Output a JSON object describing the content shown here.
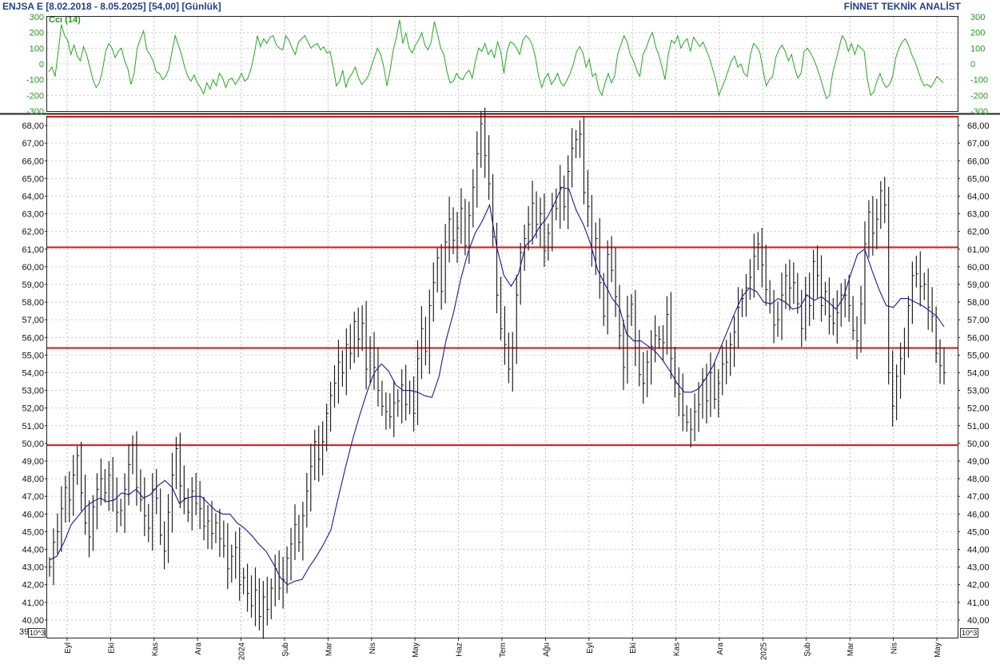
{
  "header": {
    "left": "ENJSA E  [8.02.2018 - 8.05.2025]  [54,00]  [Günlük]",
    "right": "FİNNET TEKNİK ANALİST"
  },
  "colors": {
    "price_bars": "#222222",
    "moving_average": "#1a1a99",
    "cci_line": "#21a821",
    "horizontal_lines": "#e01010",
    "header_text": "#1f3f8f"
  },
  "chart_data": [
    {
      "type": "line",
      "title": "Cci (14)",
      "indicator": "CCI",
      "period": 14,
      "ylim": [
        -300,
        300
      ],
      "y_ticks": [
        300,
        200,
        100,
        0,
        -100,
        -200,
        -300
      ],
      "y_tick_labels": [
        "300",
        "200",
        "100",
        "0",
        "-100",
        "-200",
        "-300"
      ],
      "reference_lines": [
        100,
        -100
      ],
      "grid": true,
      "series": [
        {
          "name": "Cci (14)",
          "values": [
            -50,
            -20,
            -80,
            80,
            250,
            180,
            150,
            60,
            120,
            50,
            20,
            110,
            60,
            -20,
            -100,
            -150,
            -120,
            -40,
            80,
            130,
            100,
            40,
            80,
            100,
            20,
            -30,
            -130,
            -60,
            100,
            160,
            210,
            90,
            60,
            20,
            -50,
            -60,
            -100,
            -80,
            -30,
            80,
            180,
            120,
            60,
            -20,
            -80,
            -110,
            -70,
            -120,
            -150,
            -190,
            -120,
            -160,
            -100,
            -140,
            -60,
            -90,
            -150,
            -100,
            -90,
            -130,
            -100,
            -60,
            -110,
            -90,
            -30,
            60,
            180,
            110,
            160,
            130,
            170,
            180,
            120,
            100,
            90,
            180,
            150,
            100,
            60,
            140,
            160,
            180,
            140,
            100,
            120,
            130,
            90,
            110,
            70,
            80,
            -20,
            -140,
            -110,
            -40,
            -150,
            -90,
            -60,
            -20,
            -90,
            -130,
            -110,
            -80,
            -20,
            40,
            100,
            60,
            -20,
            -140,
            -40,
            90,
            170,
            280,
            130,
            200,
            100,
            70,
            120,
            150,
            200,
            120,
            90,
            140,
            270,
            190,
            100,
            60,
            -50,
            -120,
            -110,
            -60,
            -90,
            -100,
            -60,
            -40,
            -90,
            20,
            100,
            80,
            130,
            60,
            90,
            40,
            140,
            80,
            -60,
            80,
            140,
            130,
            100,
            60,
            150,
            180,
            160,
            120,
            40,
            -80,
            -150,
            -90,
            -60,
            -130,
            -100,
            -60,
            -120,
            -140,
            -100,
            -60,
            0,
            80,
            110,
            70,
            -20,
            30,
            -80,
            -60,
            -160,
            -200,
            -120,
            -60,
            -120,
            -80,
            60,
            120,
            180,
            140,
            60,
            20,
            -40,
            -80,
            60,
            100,
            160,
            200,
            110,
            60,
            -20,
            -100,
            60,
            150,
            130,
            180,
            100,
            140,
            160,
            80,
            170,
            140,
            110,
            140,
            90,
            40,
            -30,
            -100,
            -200,
            -150,
            -100,
            -40,
            20,
            50,
            -20,
            0,
            -60,
            -80,
            60,
            130,
            110,
            70,
            -40,
            -140,
            -100,
            -80,
            40,
            90,
            120,
            80,
            20,
            60,
            -30,
            -90,
            -60,
            80,
            100,
            70,
            30,
            -20,
            -80,
            -150,
            -220,
            -200,
            -60,
            20,
            100,
            180,
            150,
            80,
            130,
            60,
            120,
            100,
            80,
            -100,
            -200,
            -180,
            -110,
            -60,
            -120,
            -150,
            -130,
            -80,
            40,
            100,
            140,
            160,
            120,
            60,
            20,
            -40,
            -100,
            -140,
            -130,
            -150,
            -120,
            -80,
            -100,
            -120
          ]
        }
      ]
    },
    {
      "type": "bar",
      "subtype": "ohlc",
      "y_ticks": [
        68,
        67,
        66,
        65,
        64,
        63,
        62,
        61,
        60,
        59,
        58,
        57,
        56,
        55,
        54,
        53,
        52,
        51,
        50,
        49,
        48,
        47,
        46,
        45,
        44,
        43,
        42,
        41,
        40
      ],
      "y_tick_labels": [
        "68,00",
        "67,00",
        "66,00",
        "65,00",
        "64,00",
        "63,00",
        "62,00",
        "61,00",
        "60,00",
        "59,00",
        "58,00",
        "57,00",
        "56,00",
        "55,00",
        "54,00",
        "53,00",
        "52,00",
        "51,00",
        "50,00",
        "49,00",
        "48,00",
        "47,00",
        "46,00",
        "45,00",
        "44,00",
        "43,00",
        "42,00",
        "41,00",
        "40,00"
      ],
      "bottom_tick_label": "39",
      "ylim": [
        39,
        68.5
      ],
      "x_tick_labels": [
        "Eyl",
        "Eki",
        "Kas",
        "Ara",
        "2024",
        "Şub",
        "Mar",
        "Nis",
        "May",
        "Haz",
        "Tem",
        "Ağu",
        "Eyl",
        "Eki",
        "Kas",
        "Ara",
        "2025",
        "Şub",
        "Mar",
        "Nis",
        "May"
      ],
      "scale_badge": "10^3",
      "grid": true,
      "horizontal_lines": [
        68.5,
        61.1,
        55.4,
        49.9
      ],
      "series": [
        {
          "name": "Close",
          "values": [
            43,
            44.4,
            45,
            46.3,
            47.5,
            46.8,
            48.2,
            49.3,
            47.2,
            45.5,
            44.7,
            46.4,
            47.4,
            48,
            47.2,
            48.2,
            46.8,
            46.1,
            46.2,
            47.4,
            48.8,
            49.9,
            47.5,
            46.8,
            45.9,
            45.2,
            47.4,
            46.9,
            44.8,
            43.9,
            46.1,
            48.2,
            49.7,
            47.6,
            46.9,
            46.1,
            47.3,
            46.6,
            46.3,
            45.3,
            45.6,
            44.9,
            45.5,
            44.6,
            44.2,
            42.9,
            43.6,
            44.1,
            42,
            42.4,
            41.5,
            40.8,
            41.7,
            40.2,
            41.3,
            40.6,
            41.8,
            42.9,
            41.8,
            42.3,
            43.5,
            44.3,
            45.4,
            44.4,
            45.9,
            47.3,
            48.7,
            50.1,
            49.1,
            50.1,
            51.7,
            52.7,
            53.4,
            54.6,
            54,
            55.6,
            55.1,
            56.9,
            55.9,
            56.8,
            54.2,
            55.4,
            54.3,
            53,
            52.1,
            51.8,
            51.5,
            52.3,
            52.4,
            53.3,
            52.2,
            53,
            51.7,
            54.8,
            56.5,
            55.2,
            57.8,
            59.1,
            60.5,
            58.6,
            61.4,
            62.7,
            61.5,
            62.2,
            63.3,
            61.2,
            62.9,
            64.5,
            66.4,
            68.1,
            66.3,
            64.7,
            61.7,
            58.4,
            56.5,
            55.6,
            54.2,
            55.4,
            58.4,
            60.8,
            61.6,
            62.4,
            63.6,
            62.4,
            63,
            60.9,
            61.9,
            63.4,
            63.3,
            64.5,
            63.4,
            65.4,
            66.7,
            67.2,
            67.5,
            64.2,
            63.4,
            60.8,
            61.6,
            59.1,
            57.2,
            60.7,
            59.8,
            58.3,
            56.1,
            54.3,
            57.2,
            57.9,
            55.4,
            53.9,
            53.4,
            54.6,
            55.5,
            56.1,
            55.9,
            55.7,
            57.3,
            54.8,
            53.4,
            52.8,
            51.6,
            51.2,
            50.8,
            51.8,
            52.2,
            53.6,
            52.4,
            54,
            52.5,
            53.4,
            54.5,
            54.6,
            55.6,
            56.3,
            57.7,
            58.2,
            58.8,
            59.4,
            60.6,
            61.3,
            60.1,
            58.7,
            57.9,
            56.7,
            57,
            58.4,
            59.5,
            58.8,
            59.1,
            57.9,
            56.5,
            58.4,
            57.8,
            60.3,
            59.5,
            57.8,
            58.6,
            57.2,
            56.8,
            57.4,
            58.4,
            58.4,
            57.8,
            56.4,
            55.8,
            57.9,
            61.3,
            63.1,
            61.9,
            62.7,
            64.3,
            63.5,
            54,
            52.1,
            53.8,
            54.8,
            55.4,
            57.8,
            59.5,
            59.6,
            58.9,
            59,
            57.7,
            57.2,
            55.1,
            54.4,
            54
          ]
        },
        {
          "name": "MA",
          "values": [
            43.4,
            43.6,
            44.4,
            45.4,
            45.9,
            46.4,
            46.7,
            46.9,
            46.7,
            46.8,
            47.2,
            47.1,
            47.4,
            46.9,
            47.1,
            47.6,
            47.9,
            47.5,
            46.6,
            46.9,
            47,
            47,
            46.6,
            46.2,
            46,
            46,
            45.5,
            45.2,
            44.8,
            44.3,
            43.9,
            43.2,
            42.4,
            42,
            42.2,
            42.3,
            43,
            43.6,
            44.3,
            45.1,
            46.9,
            48.6,
            50.2,
            51.6,
            52.9,
            54,
            54.5,
            54.1,
            53.3,
            53,
            53,
            52.9,
            52.7,
            52.6,
            53.8,
            55.9,
            57.4,
            59.3,
            60.8,
            61.9,
            62.6,
            63.5,
            61.1,
            59.5,
            58.9,
            59.6,
            61.2,
            61.6,
            62.3,
            62.8,
            63.6,
            64.5,
            64.4,
            63.2,
            62.4,
            61.3,
            59.8,
            59,
            58.2,
            57.7,
            56.2,
            55.8,
            55.8,
            55.5,
            55.2,
            54.7,
            54.1,
            53.4,
            52.9,
            52.9,
            53.1,
            53.7,
            54.4,
            55.4,
            56.4,
            57.4,
            58.3,
            58.8,
            58.6,
            58,
            57.9,
            58.2,
            58,
            57.6,
            57.7,
            58.4,
            58.1,
            58.3,
            58,
            57.6,
            58.2,
            59.5,
            60.7,
            61,
            59.8,
            58.7,
            57.8,
            57.7,
            58.2,
            58.2,
            58,
            57.8,
            57.5,
            57.2,
            56.6
          ]
        }
      ]
    }
  ]
}
